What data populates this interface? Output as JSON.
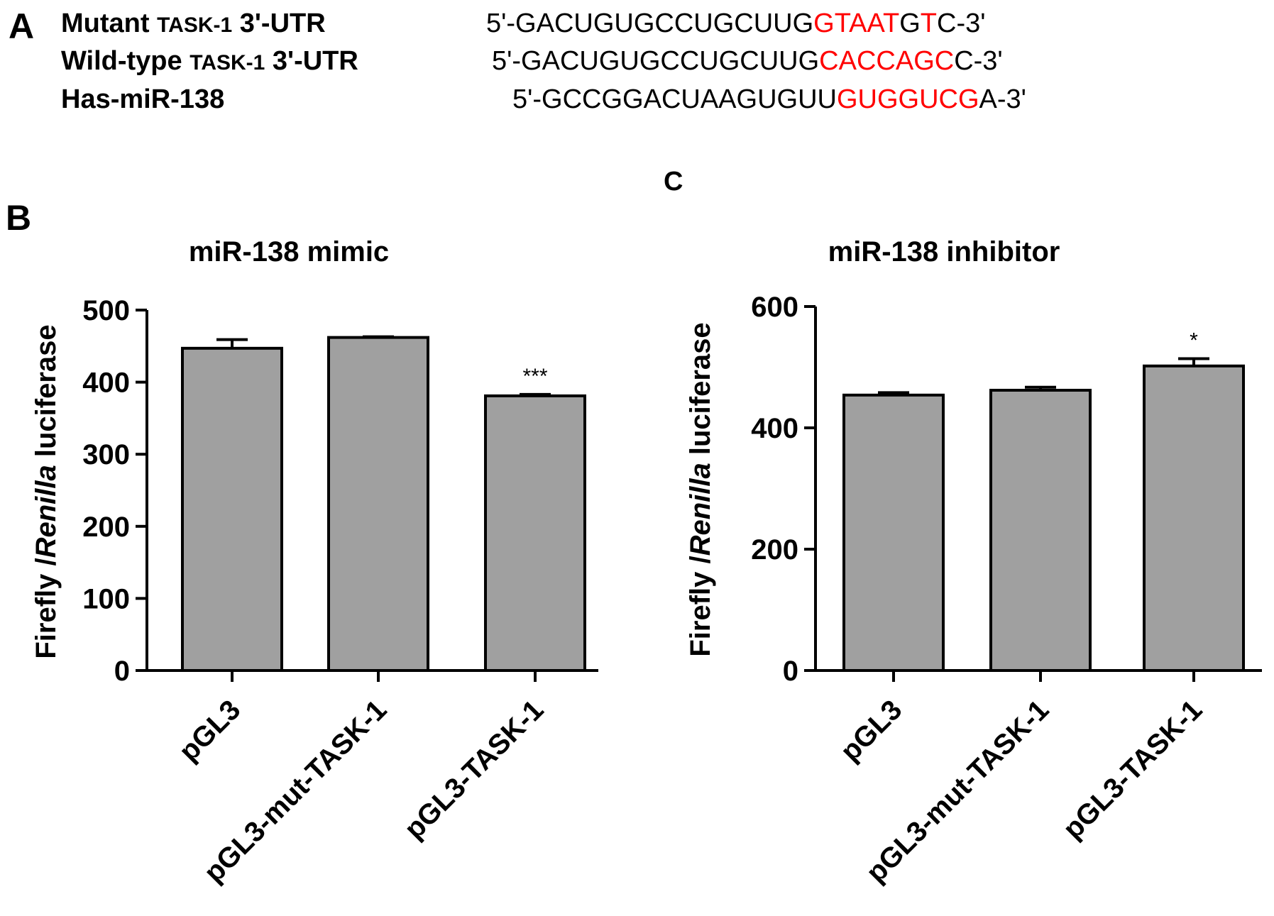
{
  "panel_a": {
    "letter": "A",
    "rows": [
      {
        "label_pre": "Mutant ",
        "label_gene": "TASK-1",
        "label_post": " 3'-UTR",
        "seq_pre": "5'-GACUGUGCCUGCUUG",
        "seq_parts": [
          {
            "text": "GTAAT",
            "hl": true
          },
          {
            "text": "G",
            "hl": false
          },
          {
            "text": "T",
            "hl": true
          },
          {
            "text": "C-3'",
            "hl": false
          }
        ]
      },
      {
        "label_pre": "Wild-type ",
        "label_gene": "TASK-1",
        "label_post": " 3'-UTR",
        "seq_pre": "5'-GACUGUGCCUGCUUG",
        "seq_parts": [
          {
            "text": "CACCAGC",
            "hl": true
          },
          {
            "text": "C-3'",
            "hl": false
          }
        ]
      },
      {
        "label_pre": "Has-miR-138",
        "label_gene": "",
        "label_post": "",
        "seq_pre": "5'-GCCGGACUAAGUGUU",
        "seq_parts": [
          {
            "text": "GUGGUCG",
            "hl": true
          },
          {
            "text": "A-3'",
            "hl": false
          }
        ]
      }
    ]
  },
  "colors": {
    "bar_fill": "#a0a0a0",
    "highlight": "#ff0000",
    "axis": "#000000"
  },
  "chart_data": [
    {
      "panel_letter": "B",
      "type": "bar",
      "title": "miR-138 mimic",
      "ylabel_parts": [
        "Firefly /",
        "Renilla",
        " luciferase"
      ],
      "ylim": [
        0,
        500
      ],
      "yticks": [
        0,
        100,
        200,
        300,
        400,
        500
      ],
      "categories": [
        "pGL3",
        "pGL3-mut-TASK-1",
        "pGL3-TASK-1"
      ],
      "values": [
        447,
        462,
        381
      ],
      "errors": [
        12,
        1,
        2
      ],
      "significance": [
        "",
        "",
        "***"
      ]
    },
    {
      "panel_letter": "C",
      "type": "bar",
      "title": "miR-138 inhibitor",
      "ylabel_parts": [
        "Firefly /",
        "Renilla",
        " luciferase"
      ],
      "ylim": [
        0,
        600
      ],
      "yticks": [
        0,
        200,
        400,
        600
      ],
      "categories": [
        "pGL3",
        "pGL3-mut-TASK-1",
        "pGL3-TASK-1"
      ],
      "values": [
        454,
        462,
        502
      ],
      "errors": [
        4,
        5,
        12
      ],
      "significance": [
        "",
        "",
        "*"
      ]
    }
  ]
}
